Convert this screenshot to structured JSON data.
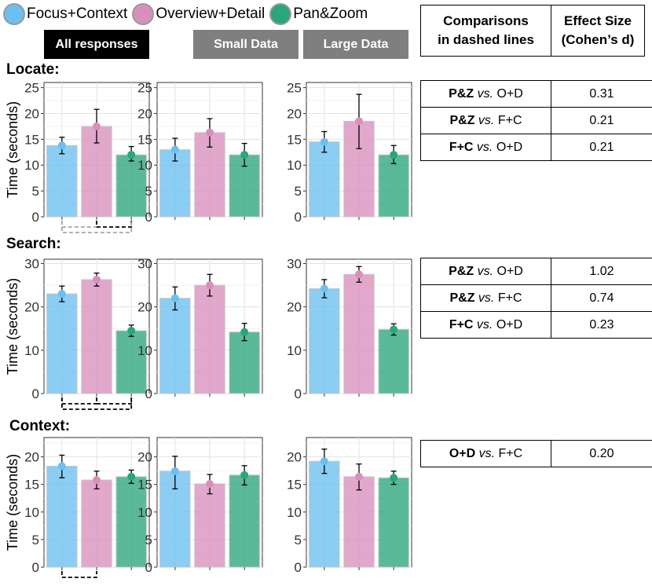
{
  "legend": [
    {
      "label": "Focus+Context",
      "color": "#6cbff0"
    },
    {
      "label": "Overview+Detail",
      "color": "#d98fbc"
    },
    {
      "label": "Pan&Zoom",
      "color": "#2aa57c"
    }
  ],
  "tags": {
    "all": "All responses",
    "small": "Small Data",
    "large": "Large Data"
  },
  "effect_table_header": {
    "comparisons": [
      "Comparisons",
      "in dashed lines"
    ],
    "effect": [
      "Effect Size",
      "(Cohen’s d)"
    ]
  },
  "effect_tables": {
    "locate": [
      {
        "a": "P&Z",
        "vs": "vs.",
        "b": "O+D",
        "d": "0.31"
      },
      {
        "a": "P&Z",
        "vs": "vs.",
        "b": "F+C",
        "d": "0.21"
      },
      {
        "a": "F+C",
        "vs": "vs.",
        "b": "O+D",
        "d": "0.21"
      }
    ],
    "search": [
      {
        "a": "P&Z",
        "vs": "vs.",
        "b": "O+D",
        "d": "1.02"
      },
      {
        "a": "P&Z",
        "vs": "vs.",
        "b": "F+C",
        "d": "0.74"
      },
      {
        "a": "F+C",
        "vs": "vs.",
        "b": "O+D",
        "d": "0.23"
      }
    ],
    "context": [
      {
        "a": "O+D",
        "vs": "vs.",
        "b": "F+C",
        "d": "0.20"
      }
    ]
  },
  "chart_data": [
    {
      "type": "bar",
      "section": "Locate:",
      "subset": "All responses",
      "ylabel": "Time (seconds)",
      "categories": [
        "Focus+Context",
        "Overview+Detail",
        "Pan&Zoom"
      ],
      "ylim": [
        0,
        26
      ],
      "yticks": [
        "0",
        "5",
        "10",
        "15",
        "20",
        "25"
      ],
      "values": [
        13.8,
        17.5,
        12.0
      ],
      "ci_low": [
        12.2,
        14.3,
        10.8
      ],
      "ci_high": [
        15.4,
        20.8,
        13.6
      ]
    },
    {
      "type": "bar",
      "section": "Locate:",
      "subset": "Small Data",
      "ylabel": "Time (seconds)",
      "categories": [
        "Focus+Context",
        "Overview+Detail",
        "Pan&Zoom"
      ],
      "ylim": [
        0,
        26
      ],
      "yticks": [
        "0",
        "5",
        "10",
        "15",
        "20",
        "25"
      ],
      "values": [
        13.0,
        16.3,
        12.0
      ],
      "ci_low": [
        10.8,
        13.5,
        9.8
      ],
      "ci_high": [
        15.2,
        19.0,
        14.2
      ]
    },
    {
      "type": "bar",
      "section": "Locate:",
      "subset": "Large Data",
      "ylabel": "Time (seconds)",
      "categories": [
        "Focus+Context",
        "Overview+Detail",
        "Pan&Zoom"
      ],
      "ylim": [
        0,
        26
      ],
      "yticks": [
        "0",
        "5",
        "10",
        "15",
        "20",
        "25"
      ],
      "values": [
        14.5,
        18.5,
        12.0
      ],
      "ci_low": [
        12.5,
        13.2,
        10.3
      ],
      "ci_high": [
        16.5,
        23.7,
        13.8
      ]
    },
    {
      "type": "bar",
      "section": "Search:",
      "subset": "All responses",
      "ylabel": "Time (seconds)",
      "categories": [
        "Focus+Context",
        "Overview+Detail",
        "Pan&Zoom"
      ],
      "ylim": [
        0,
        31
      ],
      "yticks": [
        "0",
        "10",
        "20",
        "30"
      ],
      "values": [
        23.0,
        26.3,
        14.5
      ],
      "ci_low": [
        21.2,
        24.8,
        13.2
      ],
      "ci_high": [
        24.8,
        27.8,
        15.8
      ]
    },
    {
      "type": "bar",
      "section": "Search:",
      "subset": "Small Data",
      "ylabel": "Time (seconds)",
      "categories": [
        "Focus+Context",
        "Overview+Detail",
        "Pan&Zoom"
      ],
      "ylim": [
        0,
        31
      ],
      "yticks": [
        "0",
        "10",
        "20",
        "30"
      ],
      "values": [
        22.0,
        25.0,
        14.2
      ],
      "ci_low": [
        19.3,
        22.5,
        12.2
      ],
      "ci_high": [
        24.6,
        27.5,
        16.2
      ]
    },
    {
      "type": "bar",
      "section": "Search:",
      "subset": "Large Data",
      "ylabel": "Time (seconds)",
      "categories": [
        "Focus+Context",
        "Overview+Detail",
        "Pan&Zoom"
      ],
      "ylim": [
        0,
        31
      ],
      "yticks": [
        "0",
        "10",
        "20",
        "30"
      ],
      "values": [
        24.2,
        27.5,
        14.8
      ],
      "ci_low": [
        22.1,
        25.7,
        13.5
      ],
      "ci_high": [
        26.3,
        29.3,
        16.1
      ]
    },
    {
      "type": "bar",
      "section": "Context:",
      "subset": "All responses",
      "ylabel": "Time (seconds)",
      "categories": [
        "Focus+Context",
        "Overview+Detail",
        "Pan&Zoom"
      ],
      "ylim": [
        0,
        23.5
      ],
      "yticks": [
        "0",
        "5",
        "10",
        "15",
        "20"
      ],
      "values": [
        18.3,
        15.8,
        16.4
      ],
      "ci_low": [
        16.2,
        14.2,
        15.2
      ],
      "ci_high": [
        20.3,
        17.4,
        17.6
      ]
    },
    {
      "type": "bar",
      "section": "Context:",
      "subset": "Small Data",
      "ylabel": "Time (seconds)",
      "categories": [
        "Focus+Context",
        "Overview+Detail",
        "Pan&Zoom"
      ],
      "ylim": [
        0,
        23.5
      ],
      "yticks": [
        "0",
        "5",
        "10",
        "15",
        "20"
      ],
      "values": [
        17.4,
        15.1,
        16.7
      ],
      "ci_low": [
        14.2,
        13.3,
        14.9
      ],
      "ci_high": [
        20.1,
        16.8,
        18.4
      ]
    },
    {
      "type": "bar",
      "section": "Context:",
      "subset": "Large Data",
      "ylabel": "Time (seconds)",
      "categories": [
        "Focus+Context",
        "Overview+Detail",
        "Pan&Zoom"
      ],
      "ylim": [
        0,
        23.5
      ],
      "yticks": [
        "0",
        "5",
        "10",
        "15",
        "20"
      ],
      "values": [
        19.2,
        16.4,
        16.2
      ],
      "ci_low": [
        17.0,
        14.0,
        15.0
      ],
      "ci_high": [
        21.4,
        18.7,
        17.4
      ]
    }
  ],
  "dashed_comparisons": [
    {
      "section": "Locate:",
      "pairs": [
        {
          "from": "Focus+Context",
          "to": "Overview+Detail",
          "color": "#a6a6a6",
          "level": "upper"
        },
        {
          "from": "Overview+Detail",
          "to": "Pan&Zoom",
          "color": "#000000",
          "level": "upper"
        },
        {
          "from": "Focus+Context",
          "to": "Pan&Zoom",
          "color": "#a6a6a6",
          "level": "lower"
        }
      ]
    },
    {
      "section": "Search:",
      "pairs": [
        {
          "from": "Overview+Detail",
          "to": "Pan&Zoom",
          "color": "#000000",
          "level": "upper"
        },
        {
          "from": "Focus+Context",
          "to": "Overview+Detail",
          "color": "#000000",
          "level": "upper"
        },
        {
          "from": "Focus+Context",
          "to": "Pan&Zoom",
          "color": "#000000",
          "level": "lower"
        }
      ]
    },
    {
      "section": "Context:",
      "pairs": [
        {
          "from": "Focus+Context",
          "to": "Overview+Detail",
          "color": "#000000",
          "level": "upper"
        }
      ]
    }
  ]
}
